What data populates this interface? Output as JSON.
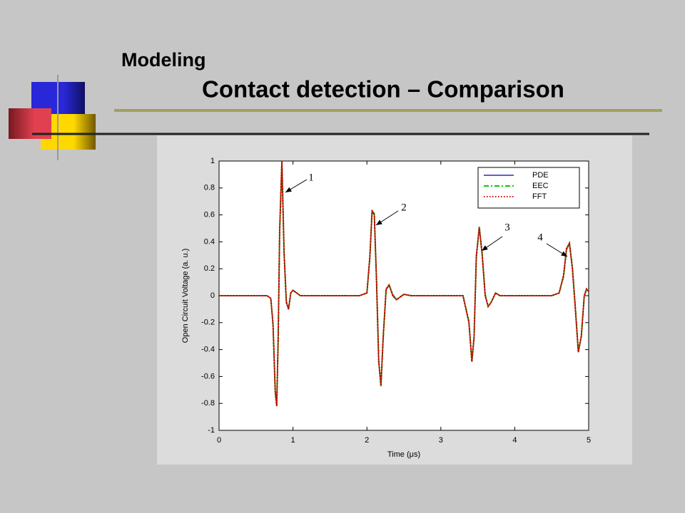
{
  "slide": {
    "title": "Modeling",
    "subtitle": "Contact detection – Comparison"
  },
  "chart_data": {
    "type": "line",
    "xlabel": "Time (μs)",
    "ylabel": "Open Circuit Voltage (a. u.)",
    "x": [
      0,
      0.5,
      0.65,
      0.7,
      0.73,
      0.76,
      0.78,
      0.8,
      0.82,
      0.85,
      0.88,
      0.91,
      0.94,
      0.97,
      1.0,
      1.05,
      1.1,
      1.5,
      1.9,
      2.0,
      2.04,
      2.07,
      2.1,
      2.13,
      2.16,
      2.19,
      2.22,
      2.26,
      2.3,
      2.35,
      2.4,
      2.5,
      2.6,
      3.0,
      3.3,
      3.38,
      3.42,
      3.45,
      3.48,
      3.52,
      3.56,
      3.6,
      3.64,
      3.68,
      3.74,
      3.8,
      3.9,
      4.0,
      4.5,
      4.6,
      4.66,
      4.7,
      4.74,
      4.78,
      4.82,
      4.86,
      4.9,
      4.94,
      4.97,
      5.0
    ],
    "series": [
      {
        "name": "PDE",
        "color": "#0000aa",
        "dash": "solid",
        "values": [
          0,
          0,
          0,
          -0.02,
          -0.2,
          -0.7,
          -0.8,
          -0.3,
          0.5,
          1.0,
          0.3,
          -0.05,
          -0.1,
          0.02,
          0.04,
          0.02,
          0,
          0,
          0,
          0.02,
          0.3,
          0.62,
          0.6,
          0.1,
          -0.5,
          -0.66,
          -0.3,
          0.05,
          0.08,
          0,
          -0.03,
          0.01,
          0,
          0,
          0,
          -0.2,
          -0.48,
          -0.3,
          0.3,
          0.5,
          0.3,
          0,
          -0.08,
          -0.05,
          0.02,
          0,
          0,
          0,
          0,
          0.02,
          0.15,
          0.35,
          0.38,
          0.2,
          -0.1,
          -0.42,
          -0.3,
          0,
          0.05,
          0.03
        ]
      },
      {
        "name": "EEC",
        "color": "#00cc00",
        "dash": "dashdot",
        "values": [
          0,
          0,
          0,
          -0.02,
          -0.22,
          -0.72,
          -0.82,
          -0.32,
          0.48,
          0.98,
          0.32,
          -0.04,
          -0.1,
          0.02,
          0.04,
          0.02,
          0,
          0,
          0,
          0.02,
          0.28,
          0.63,
          0.61,
          0.12,
          -0.48,
          -0.67,
          -0.32,
          0.04,
          0.08,
          0.01,
          -0.03,
          0.01,
          0,
          0,
          0,
          -0.19,
          -0.49,
          -0.31,
          0.28,
          0.51,
          0.31,
          0.01,
          -0.08,
          -0.05,
          0.02,
          0,
          0,
          0,
          0,
          0.02,
          0.14,
          0.34,
          0.39,
          0.21,
          -0.09,
          -0.41,
          -0.31,
          -0.01,
          0.05,
          0.03
        ]
      },
      {
        "name": "FFT",
        "color": "#cc0000",
        "dash": "dotted",
        "values": [
          0,
          0,
          0,
          -0.02,
          -0.21,
          -0.71,
          -0.82,
          -0.31,
          0.49,
          1.0,
          0.31,
          -0.05,
          -0.1,
          0.02,
          0.04,
          0.02,
          0,
          0,
          0,
          0.02,
          0.29,
          0.63,
          0.6,
          0.11,
          -0.49,
          -0.67,
          -0.31,
          0.05,
          0.08,
          0,
          -0.03,
          0.01,
          0,
          0,
          0,
          -0.2,
          -0.49,
          -0.3,
          0.29,
          0.51,
          0.3,
          0,
          -0.08,
          -0.05,
          0.02,
          0,
          0,
          0,
          0,
          0.02,
          0.15,
          0.35,
          0.39,
          0.2,
          -0.1,
          -0.42,
          -0.3,
          0,
          0.05,
          0.03
        ]
      }
    ],
    "annotations": [
      "1",
      "2",
      "3",
      "4"
    ],
    "xlim": [
      0,
      5
    ],
    "ylim": [
      -1,
      1
    ],
    "xticks": [
      0,
      1,
      2,
      3,
      4,
      5
    ],
    "yticks": [
      -1,
      -0.8,
      -0.6,
      -0.4,
      -0.2,
      0,
      0.2,
      0.4,
      0.6,
      0.8,
      1
    ],
    "legend": "upper right",
    "grid": false
  }
}
